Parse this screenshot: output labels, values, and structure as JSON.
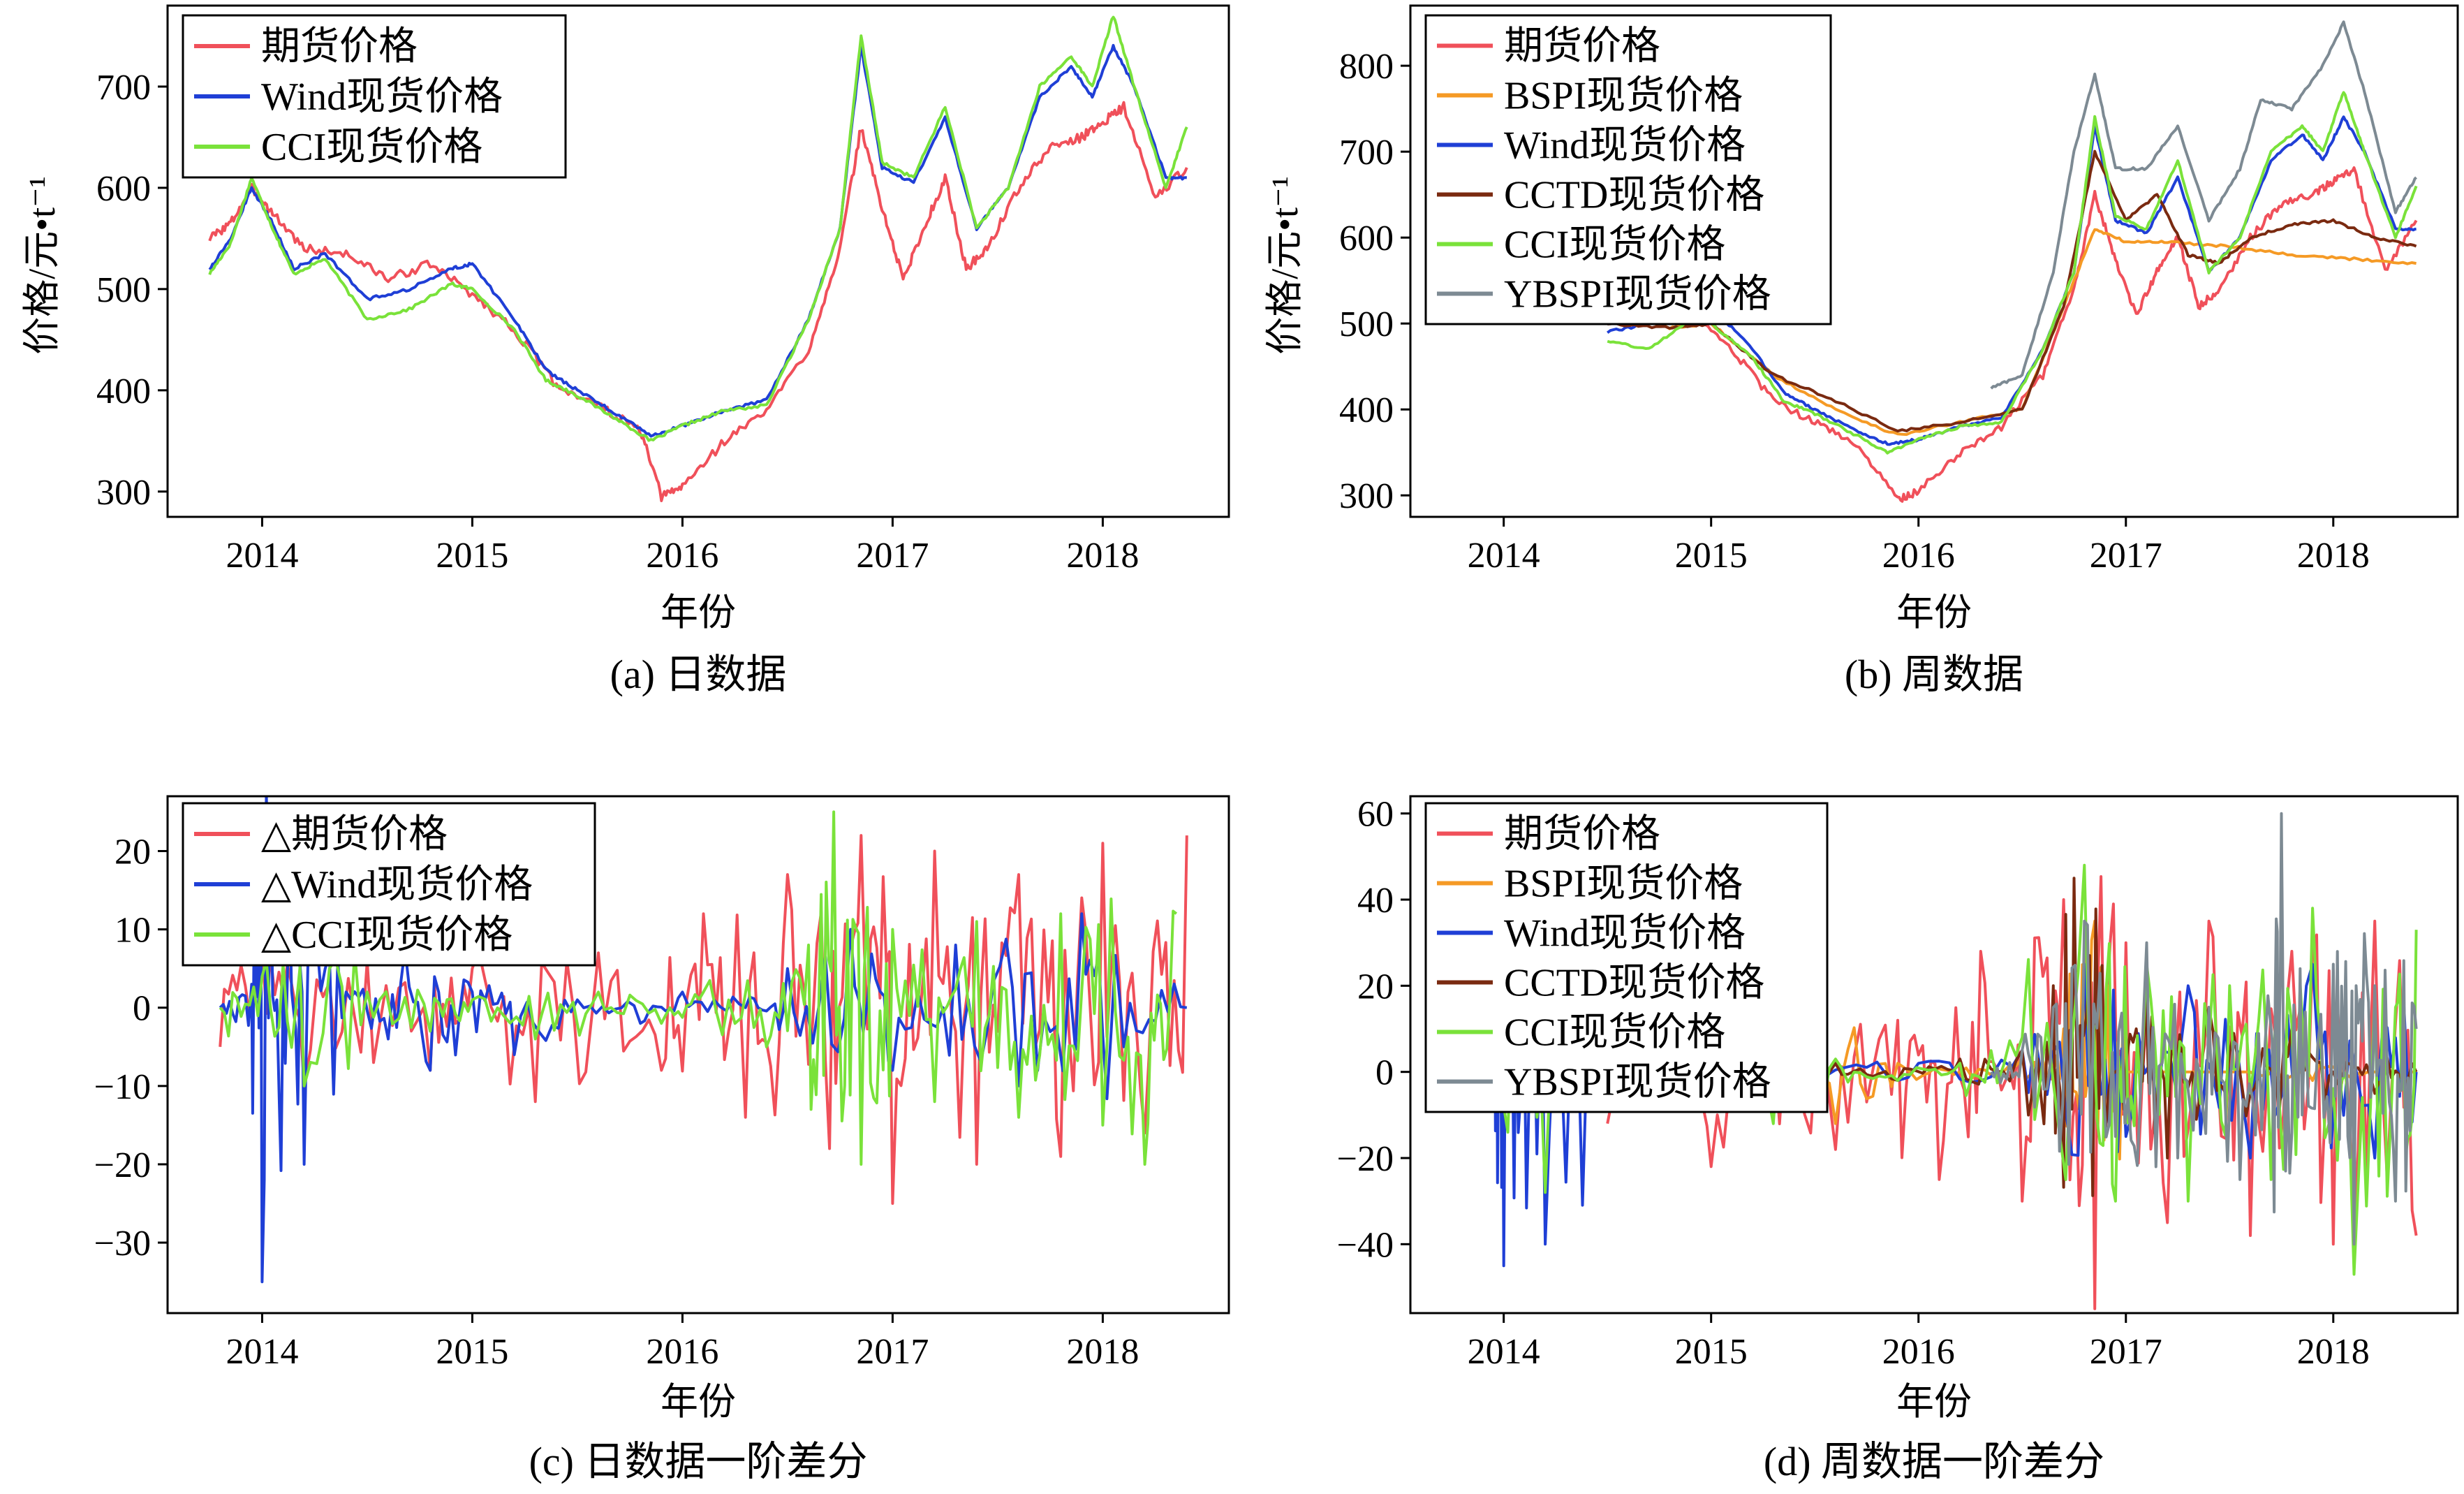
{
  "figure": {
    "panels": [
      {
        "id": "a",
        "caption": "(a) 日数据",
        "xlabel": "年份",
        "ylabel": "价格/元•t⁻¹",
        "xlim": [
          2013.55,
          2018.6
        ],
        "ylim": [
          275,
          780
        ],
        "xticks": [
          2014,
          2015,
          2016,
          2017,
          2018
        ],
        "yticks": [
          300,
          400,
          500,
          600,
          700
        ],
        "legend_position": "top-left"
      },
      {
        "id": "b",
        "caption": "(b) 周数据",
        "xlabel": "年份",
        "ylabel": "价格/元•t⁻¹",
        "xlim": [
          2013.55,
          2018.6
        ],
        "ylim": [
          275,
          870
        ],
        "xticks": [
          2014,
          2015,
          2016,
          2017,
          2018
        ],
        "yticks": [
          300,
          400,
          500,
          600,
          700,
          800
        ],
        "legend_position": "top-left"
      },
      {
        "id": "c",
        "caption": "(c) 日数据一阶差分",
        "xlabel": "年份",
        "ylabel": "",
        "xlim": [
          2013.55,
          2018.6
        ],
        "ylim": [
          -39,
          27
        ],
        "xticks": [
          2014,
          2015,
          2016,
          2017,
          2018
        ],
        "yticks": [
          -30,
          -20,
          -10,
          0,
          10,
          20
        ],
        "legend_position": "top-left"
      },
      {
        "id": "d",
        "caption": "(d) 周数据一阶差分",
        "xlabel": "年份",
        "ylabel": "",
        "xlim": [
          2013.55,
          2018.6
        ],
        "ylim": [
          -56,
          64
        ],
        "xticks": [
          2014,
          2015,
          2016,
          2017,
          2018
        ],
        "yticks": [
          -40,
          -20,
          0,
          20,
          40,
          60
        ],
        "legend_position": "top-left"
      }
    ]
  },
  "chart_data": [
    {
      "type": "line",
      "panel": "a",
      "series": [
        {
          "name": "期货价格",
          "color": "#f0505a",
          "x": [
            2013.75,
            2013.85,
            2013.95,
            2014.05,
            2014.2,
            2014.4,
            2014.6,
            2014.8,
            2015.0,
            2015.2,
            2015.4,
            2015.6,
            2015.8,
            2015.9,
            2016.0,
            2016.2,
            2016.4,
            2016.6,
            2016.75,
            2016.85,
            2016.95,
            2017.05,
            2017.15,
            2017.25,
            2017.35,
            2017.45,
            2017.6,
            2017.75,
            2017.9,
            2018.0,
            2018.1,
            2018.25,
            2018.4
          ],
          "y": [
            550,
            565,
            600,
            575,
            540,
            535,
            510,
            525,
            495,
            460,
            405,
            385,
            360,
            295,
            305,
            350,
            380,
            440,
            540,
            660,
            580,
            510,
            560,
            610,
            520,
            540,
            600,
            640,
            650,
            665,
            680,
            590,
            620
          ]
        },
        {
          "name": "Wind现货价格",
          "color": "#1f3fd6",
          "x": [
            2013.75,
            2013.85,
            2013.95,
            2014.05,
            2014.15,
            2014.3,
            2014.5,
            2014.7,
            2014.9,
            2015.0,
            2015.2,
            2015.35,
            2015.5,
            2015.7,
            2015.85,
            2016.0,
            2016.2,
            2016.4,
            2016.6,
            2016.75,
            2016.85,
            2016.95,
            2017.1,
            2017.25,
            2017.4,
            2017.55,
            2017.7,
            2017.85,
            2017.95,
            2018.05,
            2018.15,
            2018.3,
            2018.4
          ],
          "y": [
            520,
            550,
            600,
            565,
            520,
            535,
            490,
            500,
            520,
            525,
            470,
            420,
            400,
            375,
            355,
            365,
            380,
            390,
            470,
            560,
            740,
            620,
            605,
            670,
            560,
            600,
            690,
            720,
            690,
            740,
            700,
            610,
            610
          ]
        },
        {
          "name": "CCI现货价格",
          "color": "#7ae23a",
          "x": [
            2013.75,
            2013.85,
            2013.95,
            2014.05,
            2014.15,
            2014.3,
            2014.5,
            2014.7,
            2014.9,
            2015.0,
            2015.2,
            2015.35,
            2015.5,
            2015.7,
            2015.85,
            2016.0,
            2016.2,
            2016.4,
            2016.6,
            2016.75,
            2016.85,
            2016.95,
            2017.1,
            2017.25,
            2017.4,
            2017.55,
            2017.7,
            2017.85,
            2017.95,
            2018.05,
            2018.15,
            2018.3,
            2018.4
          ],
          "y": [
            515,
            545,
            610,
            560,
            515,
            530,
            470,
            480,
            505,
            500,
            460,
            410,
            395,
            370,
            350,
            365,
            380,
            385,
            470,
            560,
            750,
            625,
            610,
            680,
            560,
            600,
            700,
            730,
            700,
            770,
            700,
            600,
            660
          ]
        }
      ]
    },
    {
      "type": "line",
      "panel": "b",
      "series": [
        {
          "name": "期货价格",
          "color": "#f0505a",
          "x": [
            2014.5,
            2014.7,
            2014.9,
            2015.1,
            2015.3,
            2015.5,
            2015.7,
            2015.9,
            2016.0,
            2016.2,
            2016.4,
            2016.6,
            2016.75,
            2016.85,
            2016.95,
            2017.05,
            2017.15,
            2017.25,
            2017.35,
            2017.45,
            2017.6,
            2017.75,
            2017.9,
            2018.0,
            2018.1,
            2018.25,
            2018.4
          ],
          "y": [
            520,
            500,
            510,
            470,
            410,
            385,
            360,
            295,
            305,
            350,
            380,
            440,
            540,
            650,
            575,
            510,
            560,
            600,
            520,
            540,
            600,
            640,
            650,
            665,
            680,
            560,
            620
          ]
        },
        {
          "name": "BSPI现货价格",
          "color": "#f59a25",
          "x": [
            2014.5,
            2014.8,
            2015.0,
            2015.3,
            2015.6,
            2015.9,
            2016.2,
            2016.5,
            2016.7,
            2016.85,
            2017.0,
            2017.2,
            2017.5,
            2017.8,
            2018.1,
            2018.4
          ],
          "y": [
            520,
            495,
            500,
            440,
            400,
            370,
            385,
            400,
            520,
            610,
            595,
            595,
            590,
            580,
            575,
            570
          ]
        },
        {
          "name": "Wind现货价格",
          "color": "#1f3fd6",
          "x": [
            2014.5,
            2014.7,
            2014.9,
            2015.0,
            2015.2,
            2015.35,
            2015.5,
            2015.7,
            2015.85,
            2016.0,
            2016.2,
            2016.4,
            2016.6,
            2016.75,
            2016.85,
            2016.95,
            2017.1,
            2017.25,
            2017.4,
            2017.55,
            2017.7,
            2017.85,
            2017.95,
            2018.05,
            2018.15,
            2018.3,
            2018.4
          ],
          "y": [
            490,
            500,
            520,
            520,
            470,
            420,
            400,
            375,
            360,
            365,
            380,
            390,
            470,
            560,
            730,
            620,
            605,
            670,
            560,
            600,
            690,
            720,
            690,
            740,
            700,
            610,
            610
          ]
        },
        {
          "name": "CCTD现货价格",
          "color": "#7a2a10",
          "x": [
            2014.5,
            2014.8,
            2015.0,
            2015.3,
            2015.6,
            2015.9,
            2016.2,
            2016.5,
            2016.7,
            2016.85,
            2017.0,
            2017.15,
            2017.3,
            2017.45,
            2017.6,
            2017.8,
            2018.0,
            2018.2,
            2018.4
          ],
          "y": [
            500,
            495,
            500,
            440,
            410,
            375,
            385,
            400,
            520,
            700,
            620,
            650,
            580,
            570,
            600,
            615,
            620,
            600,
            590
          ]
        },
        {
          "name": "CCI现货价格",
          "color": "#7ae23a",
          "x": [
            2014.5,
            2014.7,
            2014.9,
            2015.0,
            2015.2,
            2015.35,
            2015.5,
            2015.7,
            2015.85,
            2016.0,
            2016.2,
            2016.4,
            2016.6,
            2016.75,
            2016.85,
            2016.95,
            2017.1,
            2017.25,
            2017.4,
            2017.55,
            2017.7,
            2017.85,
            2017.95,
            2018.05,
            2018.15,
            2018.3,
            2018.4
          ],
          "y": [
            480,
            470,
            505,
            500,
            460,
            410,
            395,
            370,
            350,
            365,
            380,
            385,
            470,
            560,
            740,
            625,
            610,
            690,
            560,
            600,
            700,
            730,
            700,
            770,
            700,
            600,
            660
          ]
        },
        {
          "name": "YBSPI现货价格",
          "color": "#7d8a93",
          "x": [
            2016.35,
            2016.5,
            2016.65,
            2016.75,
            2016.85,
            2016.95,
            2017.1,
            2017.25,
            2017.4,
            2017.55,
            2017.65,
            2017.8,
            2017.95,
            2018.05,
            2018.15,
            2018.3,
            2018.4
          ],
          "y": [
            425,
            440,
            560,
            700,
            790,
            680,
            680,
            730,
            620,
            680,
            760,
            750,
            800,
            850,
            770,
            630,
            670
          ]
        }
      ]
    },
    {
      "type": "line",
      "panel": "c",
      "series": [
        {
          "name": "△期货价格",
          "color": "#f0505a",
          "x": [
            2013.8,
            2014.0,
            2014.2,
            2014.5,
            2014.8,
            2015.0,
            2015.3,
            2015.6,
            2015.9,
            2016.1,
            2016.3,
            2016.5,
            2016.7,
            2016.85,
            2017.0,
            2017.2,
            2017.4,
            2017.6,
            2017.8,
            2018.0,
            2018.2,
            2018.4
          ],
          "y": [
            -5,
            8,
            -10,
            6,
            -8,
            5,
            -12,
            7,
            -8,
            12,
            -14,
            17,
            -18,
            22,
            -25,
            20,
            -20,
            17,
            -19,
            21,
            -16,
            22
          ]
        },
        {
          "name": "△Wind现货价格",
          "color": "#1f3fd6",
          "x": [
            2013.8,
            2013.95,
            2014.0,
            2014.1,
            2014.2,
            2014.4,
            2014.6,
            2014.8,
            2015.0,
            2015.2,
            2015.5,
            2015.8,
            2016.0,
            2016.3,
            2016.5,
            2016.8,
            2017.0,
            2017.3,
            2017.6,
            2017.9,
            2018.1,
            2018.4
          ],
          "y": [
            0,
            3,
            -35,
            3,
            -20,
            2,
            -4,
            -8,
            2,
            -6,
            1,
            -2,
            2,
            0,
            5,
            10,
            -8,
            8,
            -10,
            12,
            -5,
            0
          ]
        },
        {
          "name": "△CCI现货价格",
          "color": "#7ae23a",
          "x": [
            2013.8,
            2014.0,
            2014.2,
            2014.5,
            2014.8,
            2015.0,
            2015.3,
            2015.6,
            2015.9,
            2016.1,
            2016.4,
            2016.6,
            2016.72,
            2016.85,
            2017.0,
            2017.2,
            2017.4,
            2017.6,
            2017.8,
            2018.0,
            2018.2,
            2018.35
          ],
          "y": [
            0,
            4,
            -10,
            2,
            -3,
            1,
            -4,
            2,
            -2,
            2,
            -5,
            8,
            25,
            -20,
            10,
            -12,
            11,
            -14,
            12,
            -15,
            -20,
            12
          ]
        }
      ]
    },
    {
      "type": "line",
      "panel": "d",
      "series": [
        {
          "name": "期货价格",
          "color": "#f0505a",
          "x": [
            2014.5,
            2014.8,
            2015.0,
            2015.3,
            2015.6,
            2015.9,
            2016.1,
            2016.3,
            2016.5,
            2016.7,
            2016.85,
            2017.0,
            2017.2,
            2017.4,
            2017.6,
            2017.8,
            2018.0,
            2018.2,
            2018.4
          ],
          "y": [
            -12,
            5,
            -22,
            8,
            -18,
            12,
            -25,
            28,
            -30,
            40,
            -55,
            30,
            -35,
            35,
            -38,
            28,
            -40,
            35,
            -38
          ]
        },
        {
          "name": "BSPI现货价格",
          "color": "#f59a25",
          "x": [
            2014.5,
            2014.8,
            2015.0,
            2015.3,
            2015.6,
            2015.9,
            2016.2,
            2016.5,
            2016.7,
            2016.85,
            2017.0,
            2017.3,
            2017.6,
            2017.9,
            2018.2,
            2018.4
          ],
          "y": [
            0,
            1,
            -2,
            0,
            -12,
            2,
            0,
            3,
            10,
            35,
            0,
            0,
            0,
            -2,
            0,
            0
          ]
        },
        {
          "name": "Wind现货价格",
          "color": "#1f3fd6",
          "x": [
            2013.8,
            2013.95,
            2014.0,
            2014.1,
            2014.2,
            2014.4,
            2014.7,
            2015.0,
            2015.5,
            2016.0,
            2016.5,
            2016.8,
            2017.0,
            2017.3,
            2017.6,
            2017.9,
            2018.2,
            2018.4
          ],
          "y": [
            0,
            5,
            -45,
            5,
            -40,
            2,
            -5,
            2,
            -3,
            2,
            5,
            25,
            -15,
            20,
            -20,
            25,
            -20,
            0
          ]
        },
        {
          "name": "CCTD现货价格",
          "color": "#7a2a10",
          "x": [
            2014.5,
            2014.8,
            2015.0,
            2015.3,
            2015.6,
            2015.9,
            2016.2,
            2016.5,
            2016.65,
            2016.75,
            2016.9,
            2017.05,
            2017.2,
            2017.4,
            2017.6,
            2017.8,
            2018.0,
            2018.2,
            2018.4
          ],
          "y": [
            0,
            -2,
            1,
            -3,
            2,
            -2,
            3,
            5,
            20,
            45,
            -15,
            10,
            -20,
            15,
            -5,
            10,
            0,
            -5,
            0
          ]
        },
        {
          "name": "CCI现货价格",
          "color": "#7ae23a",
          "x": [
            2013.8,
            2014.0,
            2014.2,
            2014.5,
            2014.8,
            2015.0,
            2015.3,
            2015.6,
            2015.9,
            2016.2,
            2016.5,
            2016.8,
            2016.95,
            2017.1,
            2017.3,
            2017.5,
            2017.7,
            2017.9,
            2018.1,
            2018.3,
            2018.4
          ],
          "y": [
            0,
            -8,
            -28,
            3,
            -5,
            2,
            -12,
            3,
            -2,
            2,
            8,
            48,
            -30,
            25,
            -30,
            20,
            -25,
            38,
            -47,
            15,
            33
          ]
        },
        {
          "name": "YBSPI现货价格",
          "color": "#7d8a93",
          "x": [
            2016.35,
            2016.5,
            2016.65,
            2016.8,
            2016.95,
            2017.1,
            2017.25,
            2017.4,
            2017.55,
            2017.7,
            2017.75,
            2017.85,
            2018.0,
            2018.1,
            2018.2,
            2018.3,
            2018.4
          ],
          "y": [
            0,
            5,
            15,
            35,
            -15,
            30,
            -20,
            15,
            -25,
            10,
            60,
            -10,
            25,
            -40,
            20,
            -30,
            10
          ]
        }
      ]
    }
  ]
}
